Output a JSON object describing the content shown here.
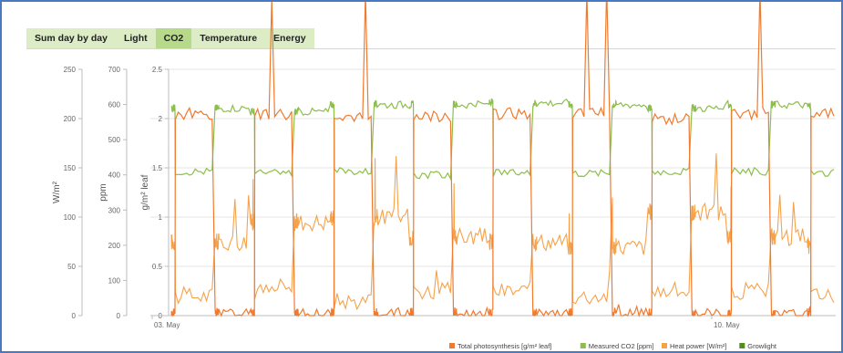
{
  "tabs": [
    {
      "label": "Sum day by day"
    },
    {
      "label": "Light"
    },
    {
      "label": "CO2",
      "active": true
    },
    {
      "label": "Temperature"
    },
    {
      "label": "Energy"
    }
  ],
  "colors": {
    "accent": "#b7d98a",
    "tab_bar": "#dcecc4",
    "frame": "#4a79c4",
    "photosynthesis": "#f07a2e",
    "co2": "#8cbf4a",
    "heat": "#f5a24a",
    "growlight": "#4f8f1e"
  },
  "chart_data": {
    "type": "line",
    "axes": [
      {
        "label": "W/m²",
        "ticks": [
          "250",
          "200",
          "150",
          "100",
          "50",
          "0"
        ],
        "range": [
          0,
          250
        ]
      },
      {
        "label": "ppm",
        "ticks": [
          "700",
          "600",
          "500",
          "400",
          "300",
          "200",
          "100",
          "0"
        ],
        "range": [
          0,
          700
        ]
      },
      {
        "label": "g/m² leaf",
        "ticks": [
          "2.5",
          "2",
          "1.5",
          "1",
          "0.5",
          "0"
        ],
        "range": [
          0,
          2.5
        ]
      }
    ],
    "x_ticks": [
      "03. May",
      "10. May"
    ],
    "grid": true,
    "legend_position": "bottom-right",
    "series": [
      {
        "name": "Total photosynthesis [g/m² leaf]",
        "color": "#f07a2e",
        "axis": 2,
        "day_values": [
          2.05,
          2.05,
          2.0,
          2.02,
          2.05,
          2.05,
          2.0,
          2.05,
          2.05,
          2.05,
          2.05,
          2.1,
          2.0,
          2.08,
          2.02,
          2.02,
          2.05,
          2.05,
          2.0,
          2.0
        ],
        "night_values": [
          0.02,
          0.01,
          0.02,
          0.02,
          0.01,
          0.02,
          0.02,
          0.01,
          0.02,
          0.02,
          0.02,
          0.02,
          0.01,
          0.02,
          0.02,
          0.02,
          0.02,
          0.02,
          0.02
        ]
      },
      {
        "name": "Measured CO2 [ppm]",
        "color": "#8cbf4a",
        "axis": 1,
        "day_values": [
          410,
          405,
          410,
          400,
          405,
          405,
          410,
          410,
          405,
          405,
          405,
          410,
          410,
          405,
          410,
          405,
          410,
          405,
          405,
          410
        ],
        "night_values": [
          590,
          580,
          600,
          600,
          605,
          600,
          590,
          600,
          595,
          600,
          600,
          595,
          580,
          600,
          600,
          590,
          600,
          560,
          570,
          600
        ]
      },
      {
        "name": "Heat power [W/m²]",
        "color": "#f5a24a",
        "axis": 0,
        "day_values": [
          20,
          25,
          15,
          25,
          25,
          20,
          25,
          25,
          20,
          20,
          25,
          15,
          20,
          20,
          20,
          25,
          20,
          25,
          20,
          20
        ],
        "night_values": [
          75,
          95,
          100,
          80,
          75,
          70,
          105,
          80,
          70,
          75,
          85,
          65,
          75,
          80,
          70,
          90,
          70,
          70,
          60
        ]
      },
      {
        "name": "Growlight",
        "color": "#4f8f1e",
        "axis": 0
      }
    ]
  }
}
